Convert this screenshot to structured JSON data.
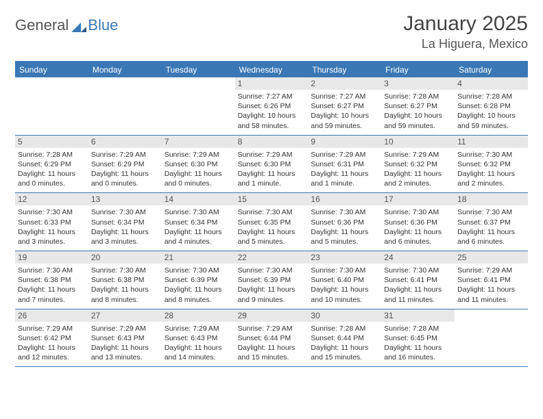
{
  "logo": {
    "general": "General",
    "blue": "Blue"
  },
  "title": {
    "month": "January 2025",
    "location": "La Higuera, Mexico"
  },
  "colors": {
    "brand": "#3a78b5",
    "headerBg": "#3a78b5",
    "headerText": "#ffffff",
    "dayNumBg": "#e8e8e8",
    "dayNumText": "#555555",
    "bodyText": "#333333",
    "logoGray": "#555555"
  },
  "weekdays": [
    "Sunday",
    "Monday",
    "Tuesday",
    "Wednesday",
    "Thursday",
    "Friday",
    "Saturday"
  ],
  "weeks": [
    [
      {
        "n": "",
        "lines": [
          "",
          "",
          "",
          ""
        ]
      },
      {
        "n": "",
        "lines": [
          "",
          "",
          "",
          ""
        ]
      },
      {
        "n": "",
        "lines": [
          "",
          "",
          "",
          ""
        ]
      },
      {
        "n": "1",
        "lines": [
          "Sunrise: 7:27 AM",
          "Sunset: 6:26 PM",
          "Daylight: 10 hours",
          "and 58 minutes."
        ]
      },
      {
        "n": "2",
        "lines": [
          "Sunrise: 7:27 AM",
          "Sunset: 6:27 PM",
          "Daylight: 10 hours",
          "and 59 minutes."
        ]
      },
      {
        "n": "3",
        "lines": [
          "Sunrise: 7:28 AM",
          "Sunset: 6:27 PM",
          "Daylight: 10 hours",
          "and 59 minutes."
        ]
      },
      {
        "n": "4",
        "lines": [
          "Sunrise: 7:28 AM",
          "Sunset: 6:28 PM",
          "Daylight: 10 hours",
          "and 59 minutes."
        ]
      }
    ],
    [
      {
        "n": "5",
        "lines": [
          "Sunrise: 7:28 AM",
          "Sunset: 6:29 PM",
          "Daylight: 11 hours",
          "and 0 minutes."
        ]
      },
      {
        "n": "6",
        "lines": [
          "Sunrise: 7:29 AM",
          "Sunset: 6:29 PM",
          "Daylight: 11 hours",
          "and 0 minutes."
        ]
      },
      {
        "n": "7",
        "lines": [
          "Sunrise: 7:29 AM",
          "Sunset: 6:30 PM",
          "Daylight: 11 hours",
          "and 0 minutes."
        ]
      },
      {
        "n": "8",
        "lines": [
          "Sunrise: 7:29 AM",
          "Sunset: 6:30 PM",
          "Daylight: 11 hours",
          "and 1 minute."
        ]
      },
      {
        "n": "9",
        "lines": [
          "Sunrise: 7:29 AM",
          "Sunset: 6:31 PM",
          "Daylight: 11 hours",
          "and 1 minute."
        ]
      },
      {
        "n": "10",
        "lines": [
          "Sunrise: 7:29 AM",
          "Sunset: 6:32 PM",
          "Daylight: 11 hours",
          "and 2 minutes."
        ]
      },
      {
        "n": "11",
        "lines": [
          "Sunrise: 7:30 AM",
          "Sunset: 6:32 PM",
          "Daylight: 11 hours",
          "and 2 minutes."
        ]
      }
    ],
    [
      {
        "n": "12",
        "lines": [
          "Sunrise: 7:30 AM",
          "Sunset: 6:33 PM",
          "Daylight: 11 hours",
          "and 3 minutes."
        ]
      },
      {
        "n": "13",
        "lines": [
          "Sunrise: 7:30 AM",
          "Sunset: 6:34 PM",
          "Daylight: 11 hours",
          "and 3 minutes."
        ]
      },
      {
        "n": "14",
        "lines": [
          "Sunrise: 7:30 AM",
          "Sunset: 6:34 PM",
          "Daylight: 11 hours",
          "and 4 minutes."
        ]
      },
      {
        "n": "15",
        "lines": [
          "Sunrise: 7:30 AM",
          "Sunset: 6:35 PM",
          "Daylight: 11 hours",
          "and 5 minutes."
        ]
      },
      {
        "n": "16",
        "lines": [
          "Sunrise: 7:30 AM",
          "Sunset: 6:36 PM",
          "Daylight: 11 hours",
          "and 5 minutes."
        ]
      },
      {
        "n": "17",
        "lines": [
          "Sunrise: 7:30 AM",
          "Sunset: 6:36 PM",
          "Daylight: 11 hours",
          "and 6 minutes."
        ]
      },
      {
        "n": "18",
        "lines": [
          "Sunrise: 7:30 AM",
          "Sunset: 6:37 PM",
          "Daylight: 11 hours",
          "and 6 minutes."
        ]
      }
    ],
    [
      {
        "n": "19",
        "lines": [
          "Sunrise: 7:30 AM",
          "Sunset: 6:38 PM",
          "Daylight: 11 hours",
          "and 7 minutes."
        ]
      },
      {
        "n": "20",
        "lines": [
          "Sunrise: 7:30 AM",
          "Sunset: 6:38 PM",
          "Daylight: 11 hours",
          "and 8 minutes."
        ]
      },
      {
        "n": "21",
        "lines": [
          "Sunrise: 7:30 AM",
          "Sunset: 6:39 PM",
          "Daylight: 11 hours",
          "and 8 minutes."
        ]
      },
      {
        "n": "22",
        "lines": [
          "Sunrise: 7:30 AM",
          "Sunset: 6:39 PM",
          "Daylight: 11 hours",
          "and 9 minutes."
        ]
      },
      {
        "n": "23",
        "lines": [
          "Sunrise: 7:30 AM",
          "Sunset: 6:40 PM",
          "Daylight: 11 hours",
          "and 10 minutes."
        ]
      },
      {
        "n": "24",
        "lines": [
          "Sunrise: 7:30 AM",
          "Sunset: 6:41 PM",
          "Daylight: 11 hours",
          "and 11 minutes."
        ]
      },
      {
        "n": "25",
        "lines": [
          "Sunrise: 7:29 AM",
          "Sunset: 6:41 PM",
          "Daylight: 11 hours",
          "and 11 minutes."
        ]
      }
    ],
    [
      {
        "n": "26",
        "lines": [
          "Sunrise: 7:29 AM",
          "Sunset: 6:42 PM",
          "Daylight: 11 hours",
          "and 12 minutes."
        ]
      },
      {
        "n": "27",
        "lines": [
          "Sunrise: 7:29 AM",
          "Sunset: 6:43 PM",
          "Daylight: 11 hours",
          "and 13 minutes."
        ]
      },
      {
        "n": "28",
        "lines": [
          "Sunrise: 7:29 AM",
          "Sunset: 6:43 PM",
          "Daylight: 11 hours",
          "and 14 minutes."
        ]
      },
      {
        "n": "29",
        "lines": [
          "Sunrise: 7:29 AM",
          "Sunset: 6:44 PM",
          "Daylight: 11 hours",
          "and 15 minutes."
        ]
      },
      {
        "n": "30",
        "lines": [
          "Sunrise: 7:28 AM",
          "Sunset: 6:44 PM",
          "Daylight: 11 hours",
          "and 15 minutes."
        ]
      },
      {
        "n": "31",
        "lines": [
          "Sunrise: 7:28 AM",
          "Sunset: 6:45 PM",
          "Daylight: 11 hours",
          "and 16 minutes."
        ]
      },
      {
        "n": "",
        "lines": [
          "",
          "",
          "",
          ""
        ]
      }
    ]
  ]
}
